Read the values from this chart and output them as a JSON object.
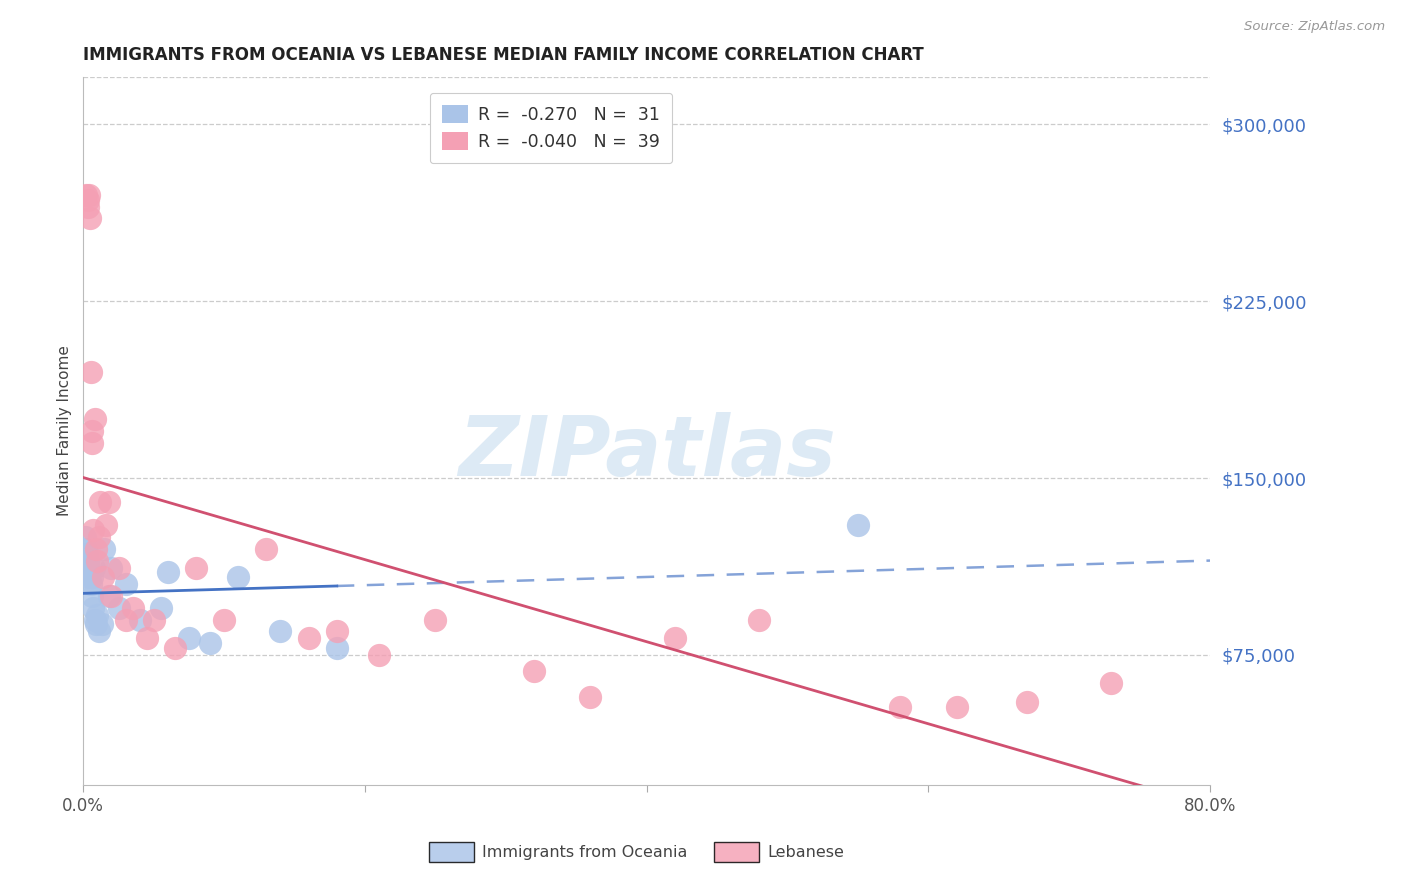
{
  "title": "IMMIGRANTS FROM OCEANIA VS LEBANESE MEDIAN FAMILY INCOME CORRELATION CHART",
  "source": "Source: ZipAtlas.com",
  "ylabel": "Median Family Income",
  "y_tick_labels": [
    "$75,000",
    "$150,000",
    "$225,000",
    "$300,000"
  ],
  "y_tick_values": [
    75000,
    150000,
    225000,
    300000
  ],
  "y_min": 20000,
  "y_max": 320000,
  "x_min": 0.0,
  "x_max": 80.0,
  "x_ticks": [
    0,
    20,
    40,
    60,
    80
  ],
  "x_tick_labels": [
    "0.0%",
    "",
    "",
    "",
    "80.0%"
  ],
  "oceania_color": "#aac4e8",
  "lebanese_color": "#f4a0b4",
  "oceania_line_color": "#4472C4",
  "lebanese_line_color": "#D05070",
  "background_color": "#ffffff",
  "grid_color": "#cccccc",
  "watermark_text": "ZIPatlas",
  "watermark_color": "#cce0f0",
  "legend_r_oceania": "-0.270",
  "legend_n_oceania": "31",
  "legend_r_lebanese": "-0.040",
  "legend_n_lebanese": "39",
  "bottom_legend_oceania": "Immigrants from Oceania",
  "bottom_legend_lebanese": "Lebanese",
  "oceania_x": [
    0.15,
    0.2,
    0.25,
    0.3,
    0.35,
    0.4,
    0.5,
    0.55,
    0.6,
    0.65,
    0.7,
    0.75,
    0.8,
    0.9,
    1.0,
    1.1,
    1.3,
    1.5,
    1.8,
    2.0,
    2.5,
    3.0,
    4.0,
    5.5,
    6.0,
    7.5,
    9.0,
    11.0,
    14.0,
    18.0,
    55.0
  ],
  "oceania_y": [
    125000,
    120000,
    118000,
    115000,
    112000,
    108000,
    110000,
    105000,
    100000,
    108000,
    95000,
    112000,
    90000,
    88000,
    92000,
    85000,
    88000,
    120000,
    100000,
    112000,
    95000,
    105000,
    90000,
    95000,
    110000,
    82000,
    80000,
    108000,
    85000,
    78000,
    130000
  ],
  "lebanese_x": [
    0.2,
    0.3,
    0.35,
    0.4,
    0.5,
    0.55,
    0.6,
    0.65,
    0.7,
    0.8,
    0.9,
    1.0,
    1.1,
    1.2,
    1.4,
    1.6,
    1.8,
    2.0,
    2.5,
    3.0,
    3.5,
    4.5,
    5.0,
    6.5,
    8.0,
    10.0,
    13.0,
    16.0,
    18.0,
    21.0,
    25.0,
    32.0,
    36.0,
    42.0,
    48.0,
    58.0,
    62.0,
    67.0,
    73.0
  ],
  "lebanese_y": [
    270000,
    268000,
    265000,
    270000,
    260000,
    195000,
    170000,
    165000,
    128000,
    175000,
    120000,
    115000,
    125000,
    140000,
    108000,
    130000,
    140000,
    100000,
    112000,
    90000,
    95000,
    82000,
    90000,
    78000,
    112000,
    90000,
    120000,
    82000,
    85000,
    75000,
    90000,
    68000,
    57000,
    82000,
    90000,
    53000,
    53000,
    55000,
    63000
  ]
}
